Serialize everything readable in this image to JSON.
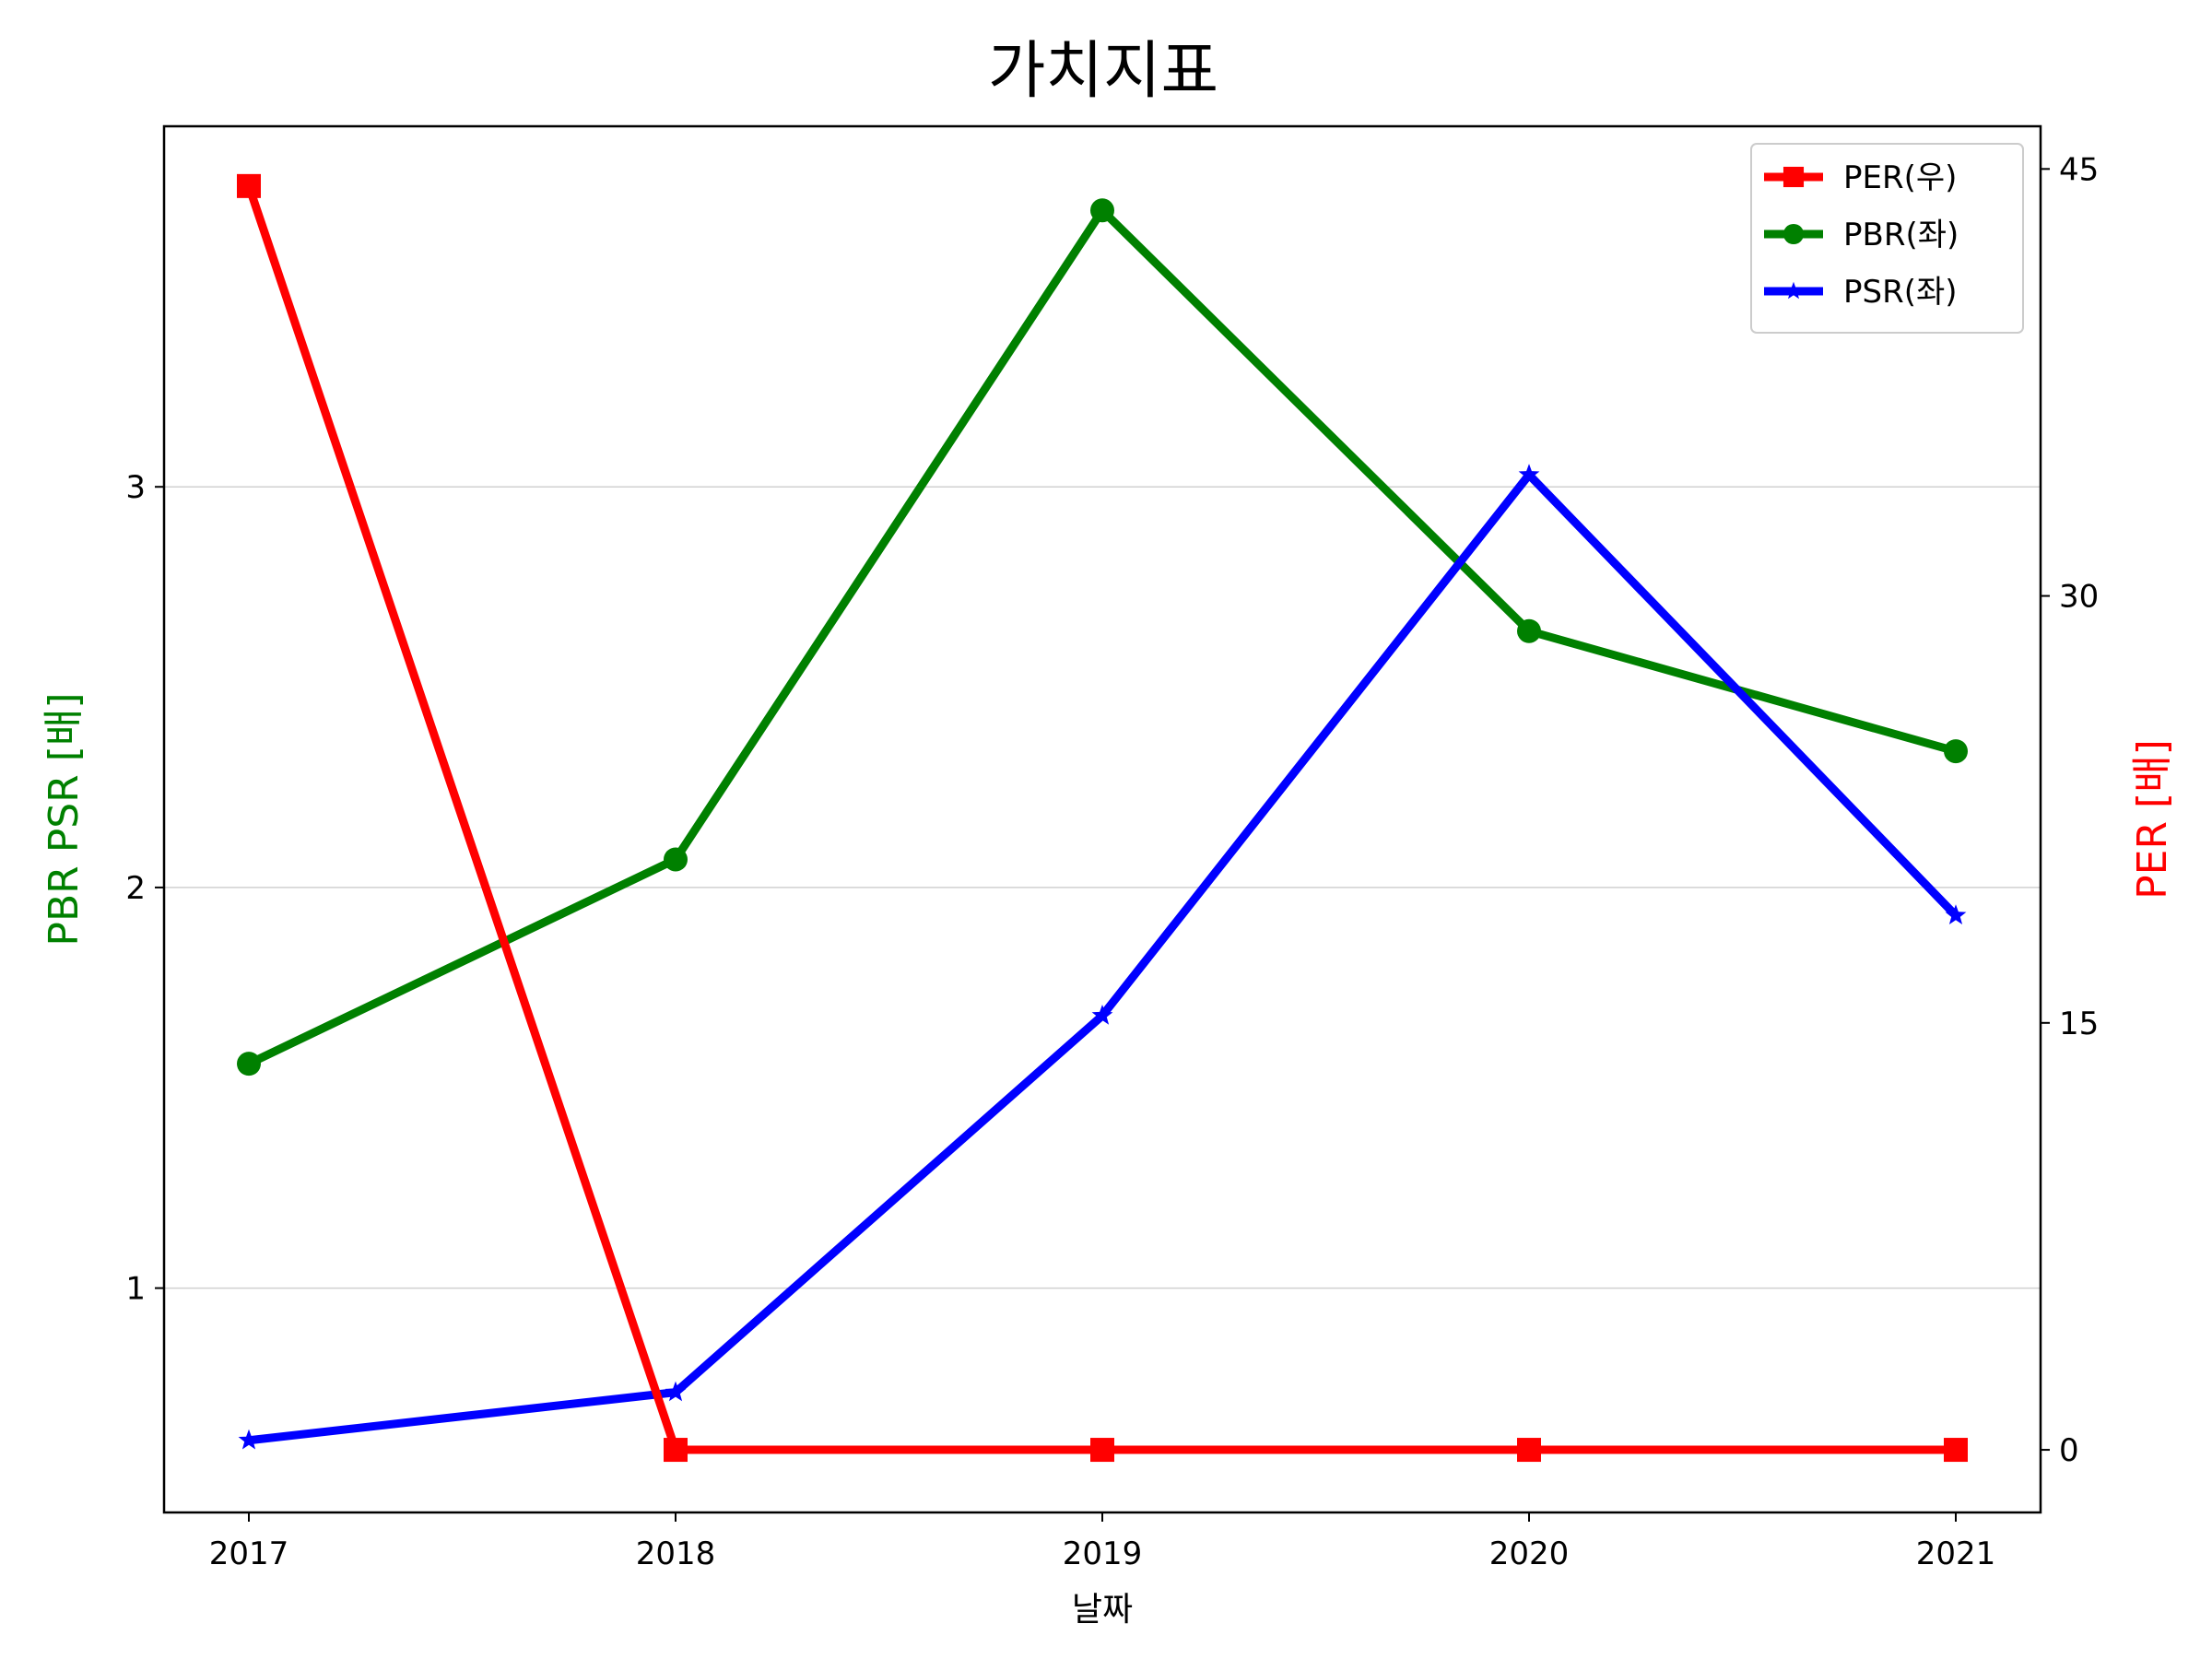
{
  "chart_data": {
    "type": "line",
    "title": "가치지표",
    "xlabel": "날짜",
    "ylabel_left": "PBR PSR [배]",
    "ylabel_right": "PER [배]",
    "ylabel_left_color": "#008000",
    "ylabel_right_color": "#ff0000",
    "categories": [
      "2017",
      "2018",
      "2019",
      "2020",
      "2021"
    ],
    "y_left": {
      "ticks": [
        "1",
        "2",
        "3"
      ],
      "tick_values": [
        1,
        2,
        3
      ],
      "ylim": [
        0.44,
        3.9
      ]
    },
    "y_right": {
      "ticks": [
        "0",
        "15",
        "30",
        "45"
      ],
      "tick_values": [
        0,
        15,
        30,
        45
      ],
      "ylim": [
        -2.2,
        46.5
      ]
    },
    "grid": "horizontal",
    "legend_position": "top-right",
    "series": [
      {
        "name": "PER(우)",
        "axis": "right",
        "color": "#ff0000",
        "marker": "square",
        "values": [
          44.4,
          0,
          0,
          0,
          0
        ]
      },
      {
        "name": "PBR(좌)",
        "axis": "left",
        "color": "#008000",
        "marker": "circle",
        "values": [
          1.56,
          2.07,
          3.69,
          2.64,
          2.34
        ]
      },
      {
        "name": "PSR(좌)",
        "axis": "left",
        "color": "#0000ff",
        "marker": "star",
        "values": [
          0.62,
          0.74,
          1.68,
          3.03,
          1.93
        ]
      }
    ]
  }
}
